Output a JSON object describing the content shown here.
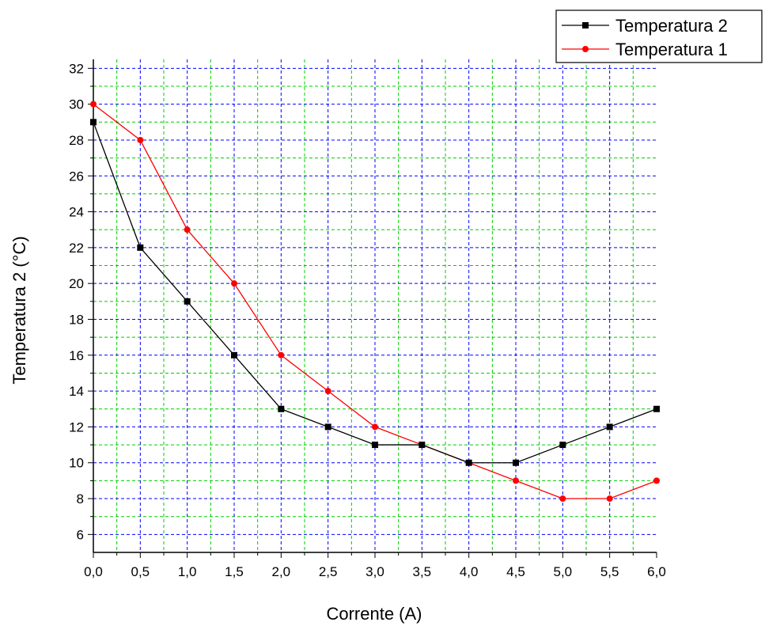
{
  "chart_data": {
    "type": "line",
    "xlabel": "Corrente (A)",
    "ylabel": "Temperatura 2 (°C)",
    "xlim": [
      0,
      6
    ],
    "ylim": [
      5,
      32.5
    ],
    "x_ticks": [
      "0,0",
      "0,5",
      "1,0",
      "1,5",
      "2,0",
      "2,5",
      "3,0",
      "3,5",
      "4,0",
      "4,5",
      "5,0",
      "5,5",
      "6,0"
    ],
    "y_ticks": [
      "6",
      "8",
      "10",
      "12",
      "14",
      "16",
      "18",
      "20",
      "22",
      "24",
      "26",
      "28",
      "30",
      "32"
    ],
    "grid": true,
    "legend_position": "top-right",
    "x": [
      0,
      0.5,
      1,
      1.5,
      2,
      2.5,
      3,
      3.5,
      4,
      4.5,
      5,
      5.5,
      6
    ],
    "series": [
      {
        "name": "Temperatura 2",
        "color": "#000000",
        "marker": "square",
        "values": [
          29,
          22,
          19,
          16,
          13,
          12,
          11,
          11,
          10,
          10,
          11,
          12,
          13
        ]
      },
      {
        "name": "Temperatura 1",
        "color": "#ff0000",
        "marker": "circle",
        "values": [
          30,
          28,
          23,
          20,
          16,
          14,
          12,
          11,
          10,
          9,
          8,
          8,
          9
        ]
      }
    ]
  }
}
